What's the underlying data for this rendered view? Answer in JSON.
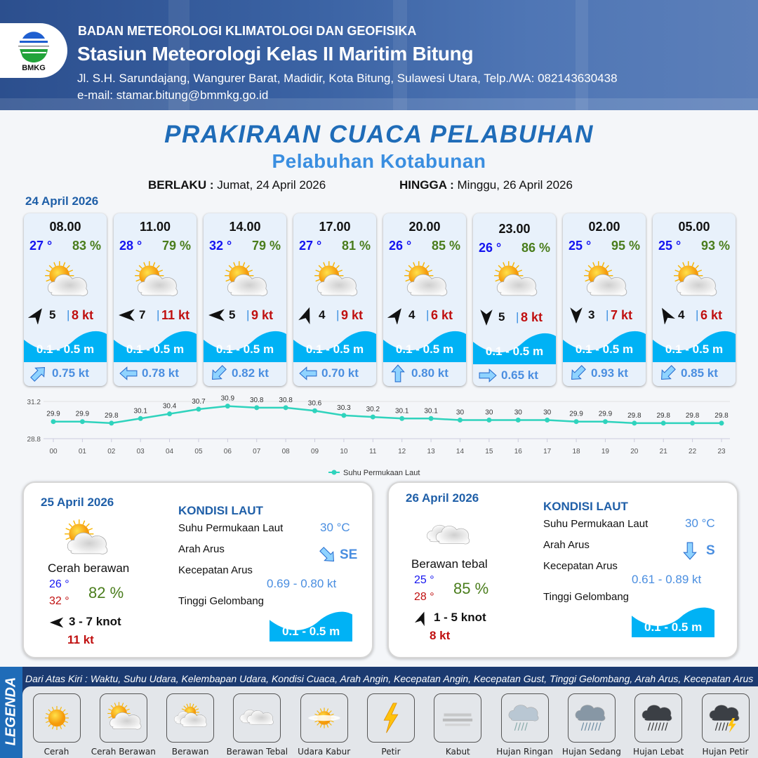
{
  "header": {
    "org": "BADAN METEOROLOGI KLIMATOLOGI DAN GEOFISIKA",
    "station": "Stasiun Meteorologi Kelas II Maritim Bitung",
    "address": "Jl. S.H. Sarundajang, Wangurer Barat, Madidir, Kota Bitung, Sulawesi Utara, Telp./WA: 082143630438",
    "email": "e-mail: stamar.bitung@bmmkg.go.id",
    "logo_text": "BMKG"
  },
  "title": "PRAKIRAAN CUACA PELABUHAN",
  "subtitle": "Pelabuhan Kotabunan",
  "validity": {
    "from_label": "BERLAKU :",
    "from": "Jumat, 24 April 2026",
    "to_label": "HINGGA :",
    "to": "Minggu, 26 April 2026"
  },
  "day1": {
    "date": "24 April 2026",
    "forecasts": [
      {
        "time": "08.00",
        "temp": "27 °",
        "humidity": "83 %",
        "weather": "cerah-berawan",
        "wind_dir_deg": 35,
        "wind_speed": "5",
        "gust": "8 kt",
        "wave": "0.1 - 0.5 m",
        "current_dir_deg": 45,
        "current_speed": "0.75 kt"
      },
      {
        "time": "11.00",
        "temp": "28 °",
        "humidity": "79 %",
        "weather": "cerah-berawan",
        "wind_dir_deg": 270,
        "wind_speed": "7",
        "gust": "11 kt",
        "wave": "0.1 - 0.5 m",
        "current_dir_deg": 270,
        "current_speed": "0.78 kt"
      },
      {
        "time": "14.00",
        "temp": "32 °",
        "humidity": "79 %",
        "weather": "cerah-berawan",
        "wind_dir_deg": 270,
        "wind_speed": "5",
        "gust": "9 kt",
        "wave": "0.1 - 0.5 m",
        "current_dir_deg": 225,
        "current_speed": "0.82 kt"
      },
      {
        "time": "17.00",
        "temp": "27 °",
        "humidity": "81 %",
        "weather": "cerah-berawan",
        "wind_dir_deg": 20,
        "wind_speed": "4",
        "gust": "9 kt",
        "wave": "0.1 - 0.5 m",
        "current_dir_deg": 270,
        "current_speed": "0.70 kt"
      },
      {
        "time": "20.00",
        "temp": "26 °",
        "humidity": "85 %",
        "weather": "cerah-berawan",
        "wind_dir_deg": 35,
        "wind_speed": "4",
        "gust": "6 kt",
        "wave": "0.1 - 0.5 m",
        "current_dir_deg": 0,
        "current_speed": "0.80 kt"
      },
      {
        "time": "23.00",
        "temp": "26 °",
        "humidity": "86 %",
        "weather": "cerah-berawan",
        "wind_dir_deg": 180,
        "wind_speed": "5",
        "gust": "8 kt",
        "wave": "0.1 - 0.5 m",
        "current_dir_deg": 90,
        "current_speed": "0.65 kt"
      },
      {
        "time": "02.00",
        "temp": "25 °",
        "humidity": "95 %",
        "weather": "cerah-berawan",
        "wind_dir_deg": 180,
        "wind_speed": "3",
        "gust": "7 kt",
        "wave": "0.1 - 0.5 m",
        "current_dir_deg": 225,
        "current_speed": "0.93 kt"
      },
      {
        "time": "05.00",
        "temp": "25 °",
        "humidity": "93 %",
        "weather": "cerah-berawan",
        "wind_dir_deg": 330,
        "wind_speed": "4",
        "gust": "6 kt",
        "wave": "0.1 - 0.5 m",
        "current_dir_deg": 225,
        "current_speed": "0.85 kt"
      }
    ]
  },
  "chart_data": {
    "type": "line",
    "x": [
      "00",
      "01",
      "02",
      "03",
      "04",
      "05",
      "06",
      "07",
      "08",
      "09",
      "10",
      "11",
      "12",
      "13",
      "14",
      "15",
      "16",
      "17",
      "18",
      "19",
      "20",
      "21",
      "22",
      "23"
    ],
    "series": [
      {
        "name": "Suhu Permukaan Laut",
        "values": [
          29.9,
          29.9,
          29.8,
          30.1,
          30.4,
          30.7,
          30.9,
          30.8,
          30.8,
          30.6,
          30.3,
          30.2,
          30.1,
          30.1,
          30.0,
          30.0,
          30.0,
          30.0,
          29.9,
          29.9,
          29.8,
          29.8,
          29.8,
          29.8
        ]
      }
    ],
    "ylim": [
      28.8,
      31.2
    ],
    "yticks": [
      "31.2",
      "28.8"
    ],
    "legend": "bottom",
    "color": "#2fd3bd"
  },
  "daily": [
    {
      "date": "25 April 2026",
      "weather": "cerah-berawan",
      "condition": "Cerah berawan",
      "temp_min": "26 °",
      "temp_max": "32 °",
      "humidity": "82 %",
      "wind_dir_deg": 270,
      "wind": "3  - 7 knot",
      "gust": "11 kt",
      "sea": {
        "heading": "KONDISI LAUT",
        "sst_label": "Suhu Permukaan Laut",
        "sst": "30 °C",
        "dir_label": "Arah Arus",
        "dir": "SE",
        "dir_deg": 135,
        "speed_label": "Kecepatan Arus",
        "speed": "0.69 - 0.80 kt",
        "wave_label": "Tinggi Gelombang",
        "wave": "0.1 - 0.5 m"
      }
    },
    {
      "date": "26 April 2026",
      "weather": "berawan-tebal",
      "condition": "Berawan tebal",
      "temp_min": "25 °",
      "temp_max": "28 °",
      "humidity": "85 %",
      "wind_dir_deg": 20,
      "wind": "1  - 5 knot",
      "gust": "8 kt",
      "sea": {
        "heading": "KONDISI LAUT",
        "sst_label": "Suhu Permukaan Laut",
        "sst": "30 °C",
        "dir_label": "Arah Arus",
        "dir": "S",
        "dir_deg": 180,
        "speed_label": "Kecepatan Arus",
        "speed": "0.61 - 0.89 kt",
        "wave_label": "Tinggi Gelombang",
        "wave": "0.1 - 0.5 m"
      }
    }
  ],
  "legend": {
    "tag": "LEGENDA",
    "text": "Dari Atas Kiri : Waktu, Suhu Udara, Kelembapan Udara, Kondisi Cuaca, Arah Angin, Kecepatan Angin, Kecepatan Gust, Tinggi Gelombang, Arah Arus, Kecepatan Arus",
    "items": [
      {
        "label": "Cerah",
        "icon": "cerah"
      },
      {
        "label": "Cerah Berawan",
        "icon": "cerah-berawan"
      },
      {
        "label": "Berawan",
        "icon": "berawan"
      },
      {
        "label": "Berawan Tebal",
        "icon": "berawan-tebal"
      },
      {
        "label": "Udara Kabur",
        "icon": "udara-kabur"
      },
      {
        "label": "Petir",
        "icon": "petir"
      },
      {
        "label": "Kabut",
        "icon": "kabut"
      },
      {
        "label": "Hujan Ringan",
        "icon": "hujan-ringan"
      },
      {
        "label": "Hujan Sedang",
        "icon": "hujan-sedang"
      },
      {
        "label": "Hujan Lebat",
        "icon": "hujan-lebat"
      },
      {
        "label": "Hujan Petir",
        "icon": "hujan-petir"
      }
    ]
  },
  "colors": {
    "brand": "#1f6cb8",
    "wave": "#00b2f5",
    "temp": "#1414f0",
    "humidity": "#4a7d1c",
    "gust": "#c01010",
    "current": "#4a8ee0"
  }
}
